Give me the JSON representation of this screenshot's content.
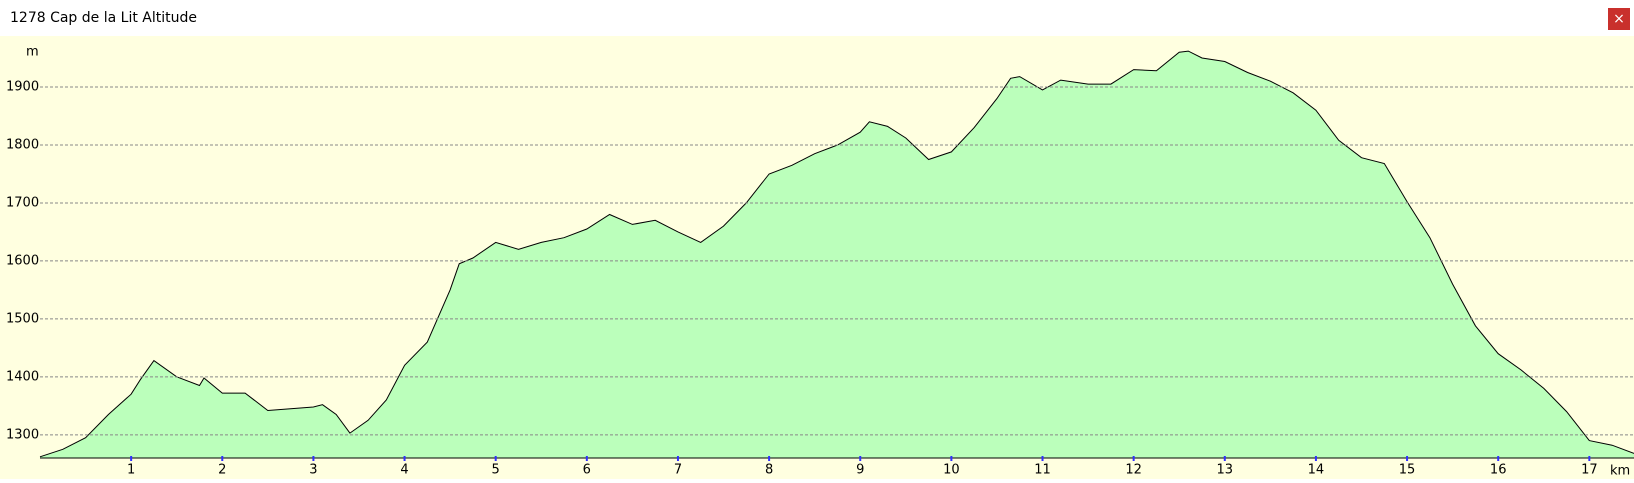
{
  "window": {
    "title": "1278 Cap de la Lit Altitude",
    "close": "×"
  },
  "chart_data": {
    "type": "area",
    "y_label": "m",
    "x_label": "km",
    "x": [
      0,
      0.25,
      0.5,
      0.75,
      1.0,
      1.1,
      1.25,
      1.5,
      1.75,
      1.8,
      2.0,
      2.25,
      2.5,
      2.75,
      3.0,
      3.1,
      3.25,
      3.4,
      3.6,
      3.8,
      4.0,
      4.25,
      4.5,
      4.6,
      4.75,
      5.0,
      5.25,
      5.5,
      5.75,
      6.0,
      6.25,
      6.5,
      6.75,
      7.0,
      7.25,
      7.5,
      7.75,
      8.0,
      8.25,
      8.5,
      8.75,
      9.0,
      9.1,
      9.3,
      9.5,
      9.75,
      10.0,
      10.25,
      10.5,
      10.65,
      10.75,
      11.0,
      11.2,
      11.5,
      11.75,
      12.0,
      12.25,
      12.5,
      12.6,
      12.75,
      13.0,
      13.25,
      13.5,
      13.75,
      14.0,
      14.25,
      14.5,
      14.75,
      15.0,
      15.25,
      15.5,
      15.75,
      16.0,
      16.25,
      16.5,
      16.75,
      17.0,
      17.25,
      17.49
    ],
    "values": [
      1262,
      1275,
      1295,
      1335,
      1370,
      1395,
      1428,
      1400,
      1385,
      1398,
      1372,
      1372,
      1342,
      1345,
      1348,
      1352,
      1335,
      1303,
      1325,
      1360,
      1420,
      1460,
      1550,
      1595,
      1605,
      1632,
      1620,
      1632,
      1640,
      1655,
      1680,
      1663,
      1670,
      1650,
      1632,
      1660,
      1700,
      1750,
      1765,
      1785,
      1800,
      1822,
      1840,
      1832,
      1812,
      1775,
      1788,
      1830,
      1880,
      1915,
      1918,
      1895,
      1912,
      1905,
      1905,
      1930,
      1928,
      1960,
      1962,
      1950,
      1944,
      1925,
      1910,
      1890,
      1860,
      1808,
      1778,
      1768,
      1702,
      1640,
      1560,
      1488,
      1440,
      1412,
      1380,
      1340,
      1290,
      1282,
      1268
    ],
    "xlim": [
      0,
      17.49
    ],
    "ylim": [
      1260,
      1988
    ],
    "xticks": [
      1,
      2,
      3,
      4,
      5,
      6,
      7,
      8,
      9,
      10,
      11,
      12,
      13,
      14,
      15,
      16,
      17
    ],
    "yticks": [
      1300,
      1400,
      1500,
      1600,
      1700,
      1800,
      1900
    ],
    "grid": true,
    "color": "#bbffbb",
    "line_color": "#000000"
  }
}
